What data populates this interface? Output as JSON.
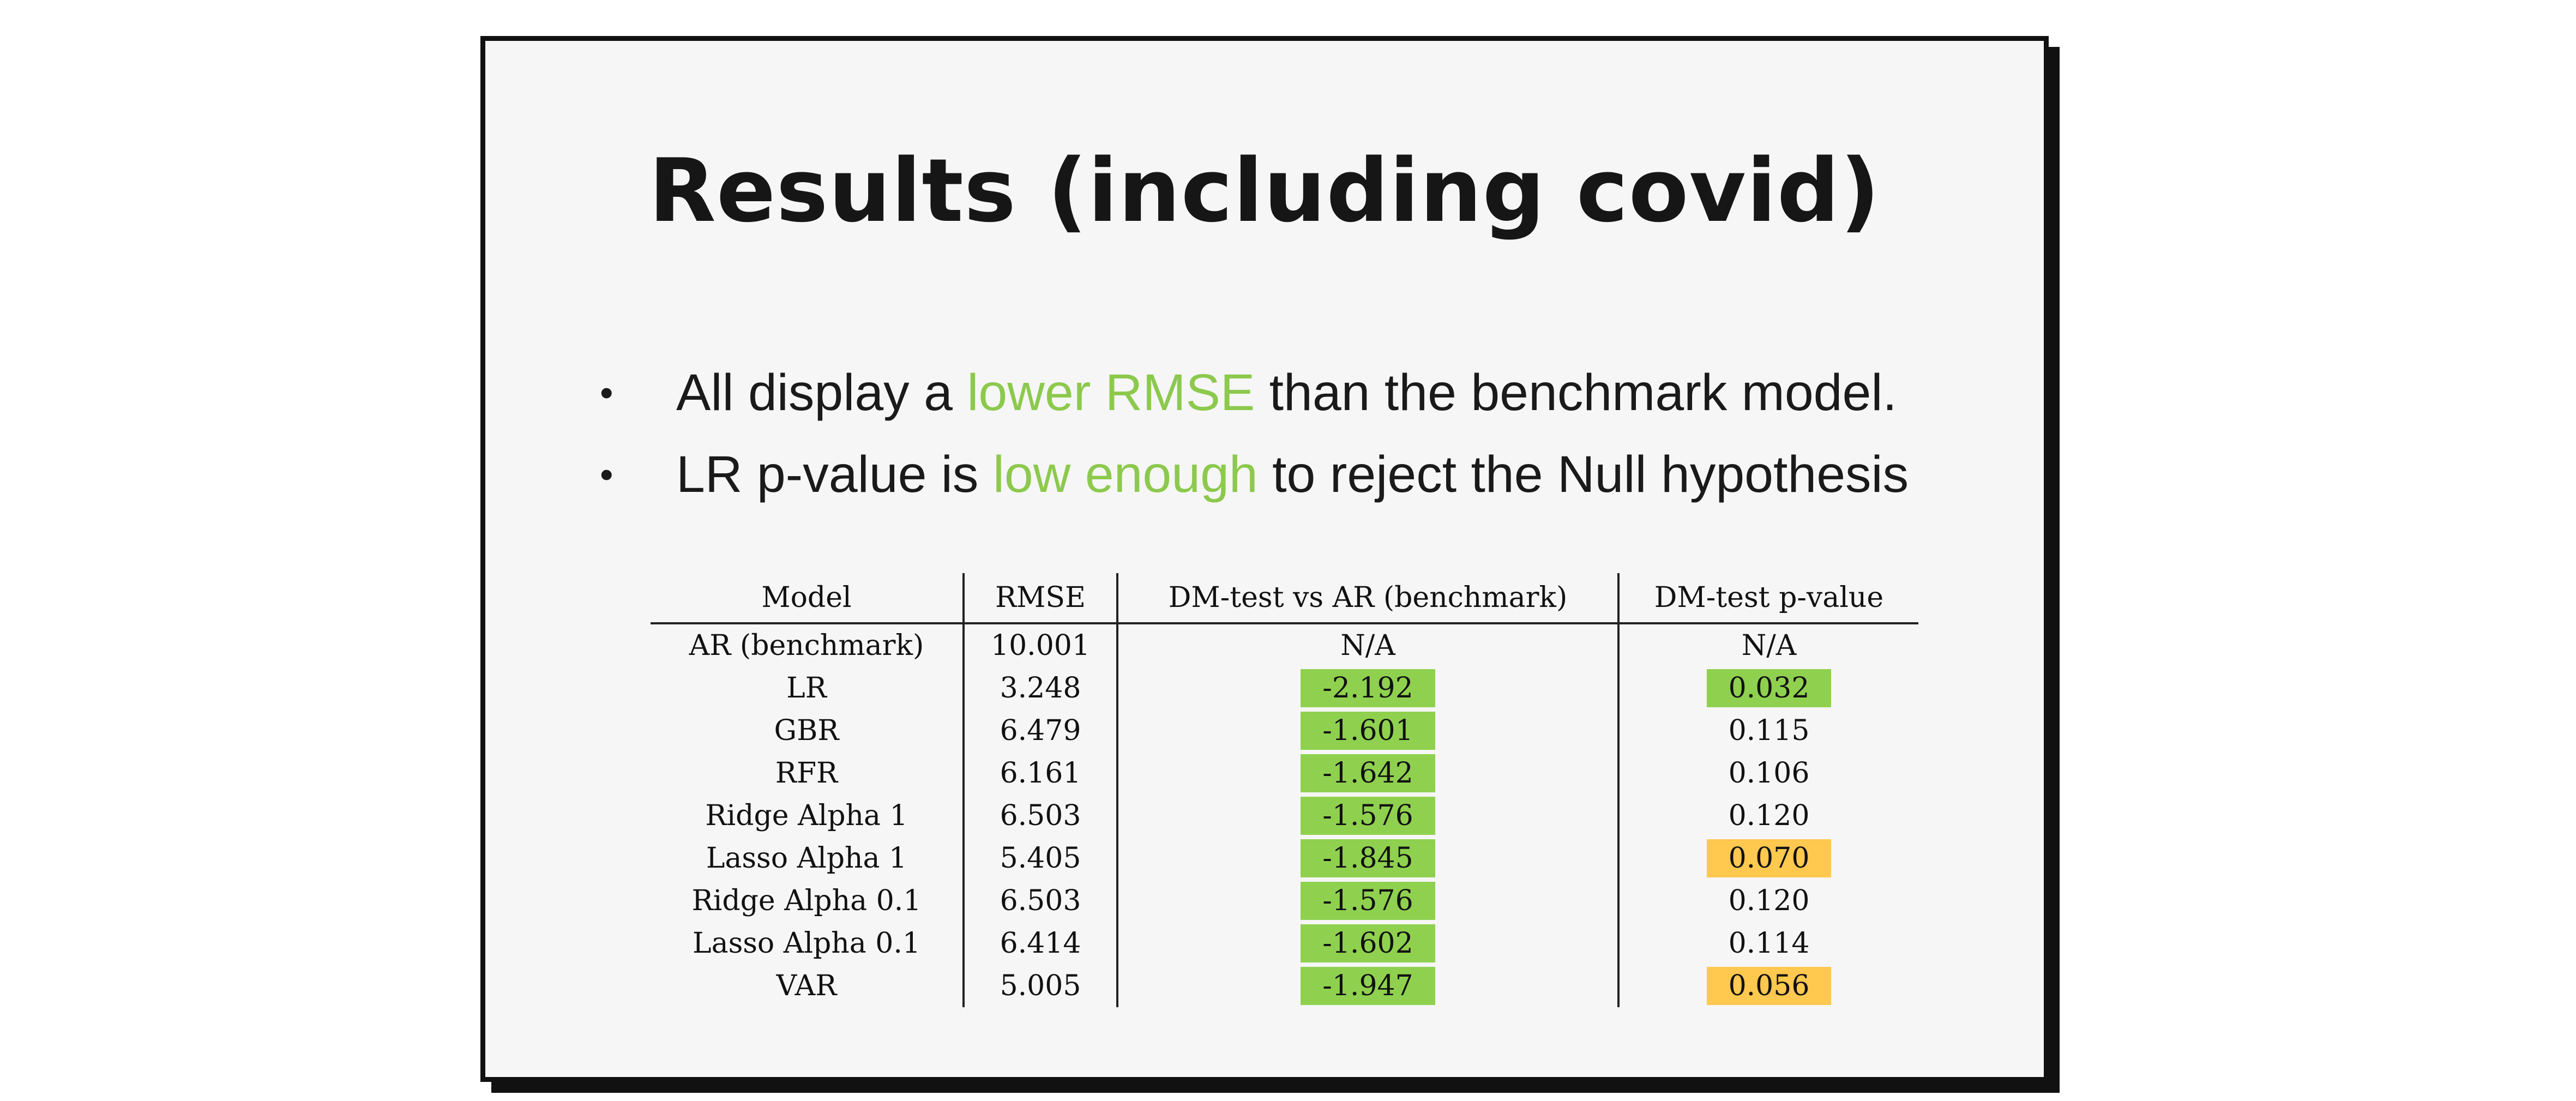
{
  "slide": {
    "title": "Results (including covid)",
    "bullets": [
      {
        "before": "All display a ",
        "highlight": "lower RMSE",
        "after": " than the benchmark model."
      },
      {
        "before": "LR p-value is ",
        "highlight": "low enough",
        "after": " to reject the Null hypothesis"
      }
    ],
    "bullet_symbol": "•",
    "highlight_color": "#8cc94d"
  },
  "table": {
    "headers": [
      "Model",
      "RMSE",
      "DM-test vs AR (benchmark)",
      "DM-test p-value"
    ],
    "rows": [
      {
        "model": "AR (benchmark)",
        "rmse": "10.001",
        "dm": "N/A",
        "dm_hl": "",
        "pvalue": "N/A",
        "p_hl": ""
      },
      {
        "model": "LR",
        "rmse": "3.248",
        "dm": "-2.192",
        "dm_hl": "green",
        "pvalue": "0.032",
        "p_hl": "green"
      },
      {
        "model": "GBR",
        "rmse": "6.479",
        "dm": "-1.601",
        "dm_hl": "green",
        "pvalue": "0.115",
        "p_hl": ""
      },
      {
        "model": "RFR",
        "rmse": "6.161",
        "dm": "-1.642",
        "dm_hl": "green",
        "pvalue": "0.106",
        "p_hl": ""
      },
      {
        "model": "Ridge Alpha 1",
        "rmse": "6.503",
        "dm": "-1.576",
        "dm_hl": "green",
        "pvalue": "0.120",
        "p_hl": ""
      },
      {
        "model": "Lasso Alpha 1",
        "rmse": "5.405",
        "dm": "-1.845",
        "dm_hl": "green",
        "pvalue": "0.070",
        "p_hl": "orange"
      },
      {
        "model": "Ridge Alpha 0.1",
        "rmse": "6.503",
        "dm": "-1.576",
        "dm_hl": "green",
        "pvalue": "0.120",
        "p_hl": ""
      },
      {
        "model": "Lasso Alpha 0.1",
        "rmse": "6.414",
        "dm": "-1.602",
        "dm_hl": "green",
        "pvalue": "0.114",
        "p_hl": ""
      },
      {
        "model": "VAR",
        "rmse": "5.005",
        "dm": "-1.947",
        "dm_hl": "green",
        "pvalue": "0.056",
        "p_hl": "orange"
      }
    ],
    "colors": {
      "green": "#8fd14f",
      "orange": "#ffc84f"
    }
  }
}
